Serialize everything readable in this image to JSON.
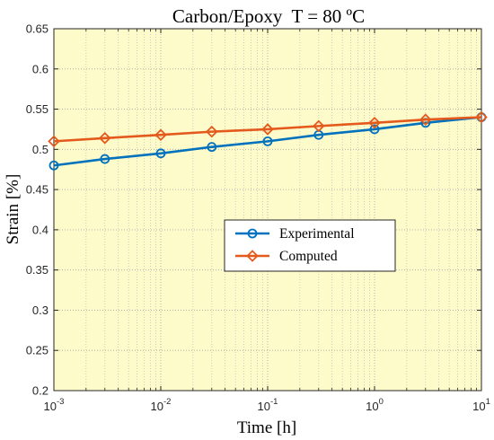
{
  "chart_data": {
    "type": "line",
    "title": "Carbon/Epoxy  T = 80 ºC",
    "xlabel": "Time [h]",
    "ylabel": "Strain [%]",
    "xscale": "log",
    "xlim": [
      0.001,
      10
    ],
    "ylim": [
      0.2,
      0.65
    ],
    "x": [
      0.001,
      0.003,
      0.01,
      0.03,
      0.1,
      0.3,
      1,
      3,
      10
    ],
    "xticks": [
      0.001,
      0.01,
      0.1,
      1,
      10
    ],
    "xtick_base": "10",
    "xtick_exponents": [
      "-3",
      "-2",
      "-1",
      "0",
      "1"
    ],
    "yticks": [
      0.2,
      0.25,
      0.3,
      0.35,
      0.4,
      0.45,
      0.5,
      0.55,
      0.6,
      0.65
    ],
    "ytick_labels": [
      "0.2",
      "0.25",
      "0.3",
      "0.35",
      "0.4",
      "0.45",
      "0.5",
      "0.55",
      "0.6",
      "0.65"
    ],
    "grid": true,
    "minor_grid": "x",
    "legend_position": "center-right",
    "background_color": "#FDFBC9",
    "series": [
      {
        "name": "Experimental",
        "color": "#0072BD",
        "marker": "circle",
        "values": [
          0.48,
          0.488,
          0.495,
          0.503,
          0.51,
          0.518,
          0.525,
          0.533,
          0.54
        ]
      },
      {
        "name": "Computed",
        "color": "#E45A1D",
        "marker": "diamond",
        "values": [
          0.51,
          0.514,
          0.518,
          0.522,
          0.525,
          0.529,
          0.533,
          0.537,
          0.54
        ]
      }
    ]
  }
}
